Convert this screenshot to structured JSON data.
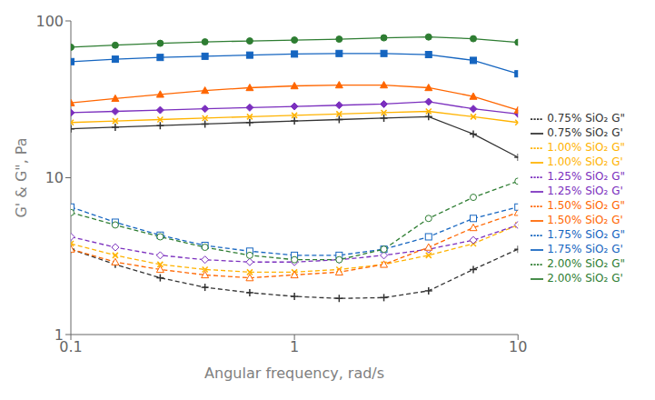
{
  "chart_data": {
    "type": "line",
    "xlabel": "Angular frequency, rad/s",
    "ylabel": "G' & G\", Pa",
    "log": true,
    "grid": false,
    "legend": "right",
    "x": [
      0.1,
      0.158,
      0.251,
      0.398,
      0.631,
      1.0,
      1.585,
      2.512,
      3.981,
      6.31,
      10.0
    ],
    "xlim": [
      0.1,
      10.0
    ],
    "ylim": [
      1.0,
      100.0
    ],
    "xticks": [
      0.1,
      1,
      10
    ],
    "yticks": [
      1,
      10,
      100
    ],
    "series": [
      {
        "name": "0.75% SiO₂ G'",
        "color": "#333333",
        "line_style": "solid",
        "marker": "plus",
        "values": [
          20.5,
          21.0,
          21.5,
          22.0,
          22.5,
          23.0,
          23.5,
          24.0,
          24.5,
          19.0,
          13.5
        ]
      },
      {
        "name": "0.75% SiO₂ G\"",
        "color": "#333333",
        "line_style": "dashed",
        "marker": "plus",
        "values": [
          3.5,
          2.8,
          2.3,
          2.0,
          1.85,
          1.75,
          1.7,
          1.72,
          1.9,
          2.6,
          3.5
        ]
      },
      {
        "name": "1.00% SiO₂ G'",
        "color": "#FFB300",
        "line_style": "solid",
        "marker": "x",
        "values": [
          22.5,
          23.0,
          23.5,
          24.0,
          24.5,
          25.0,
          25.5,
          26.0,
          26.5,
          24.5,
          22.5
        ]
      },
      {
        "name": "1.00% SiO₂ G\"",
        "color": "#FFB300",
        "line_style": "dashed",
        "marker": "x",
        "values": [
          3.8,
          3.2,
          2.8,
          2.6,
          2.5,
          2.5,
          2.6,
          2.8,
          3.2,
          3.8,
          5.0
        ]
      },
      {
        "name": "1.25% SiO₂ G'",
        "color": "#7B2FBE",
        "line_style": "solid",
        "marker": "diamond",
        "values": [
          26.0,
          26.5,
          27.0,
          27.5,
          28.0,
          28.5,
          29.0,
          29.5,
          30.5,
          27.5,
          25.5
        ]
      },
      {
        "name": "1.25% SiO₂ G\"",
        "color": "#7B2FBE",
        "line_style": "dashed",
        "marker": "diamond-open",
        "values": [
          4.2,
          3.6,
          3.2,
          3.0,
          2.9,
          2.9,
          3.0,
          3.2,
          3.5,
          4.0,
          5.0
        ]
      },
      {
        "name": "1.50% SiO₂ G'",
        "color": "#FF6600",
        "line_style": "solid",
        "marker": "triangle",
        "values": [
          30.0,
          32.0,
          34.0,
          36.0,
          37.5,
          38.5,
          39.0,
          39.0,
          37.5,
          33.0,
          27.0
        ]
      },
      {
        "name": "1.50% SiO₂ G\"",
        "color": "#FF6600",
        "line_style": "dashed",
        "marker": "triangle-open",
        "values": [
          3.5,
          2.9,
          2.6,
          2.4,
          2.3,
          2.4,
          2.5,
          2.8,
          3.6,
          4.8,
          6.0
        ]
      },
      {
        "name": "1.75% SiO₂ G'",
        "color": "#1565C0",
        "line_style": "solid",
        "marker": "square",
        "values": [
          55.0,
          57.0,
          58.5,
          59.5,
          60.5,
          61.5,
          62.0,
          62.0,
          61.0,
          56.0,
          46.0
        ]
      },
      {
        "name": "1.75% SiO₂ G\"",
        "color": "#1565C0",
        "line_style": "dashed",
        "marker": "square-open",
        "values": [
          6.5,
          5.2,
          4.3,
          3.7,
          3.4,
          3.2,
          3.2,
          3.5,
          4.2,
          5.5,
          6.5
        ]
      },
      {
        "name": "2.00% SiO₂ G'",
        "color": "#2E7D32",
        "line_style": "solid",
        "marker": "circle",
        "values": [
          68.0,
          70.0,
          72.0,
          73.5,
          74.5,
          75.5,
          76.5,
          78.0,
          79.0,
          77.0,
          73.0
        ]
      },
      {
        "name": "2.00% SiO₂ G\"",
        "color": "#2E7D32",
        "line_style": "dashed",
        "marker": "circle-open",
        "values": [
          6.0,
          5.0,
          4.2,
          3.6,
          3.2,
          3.0,
          3.0,
          3.5,
          5.5,
          7.5,
          9.5
        ]
      }
    ]
  }
}
